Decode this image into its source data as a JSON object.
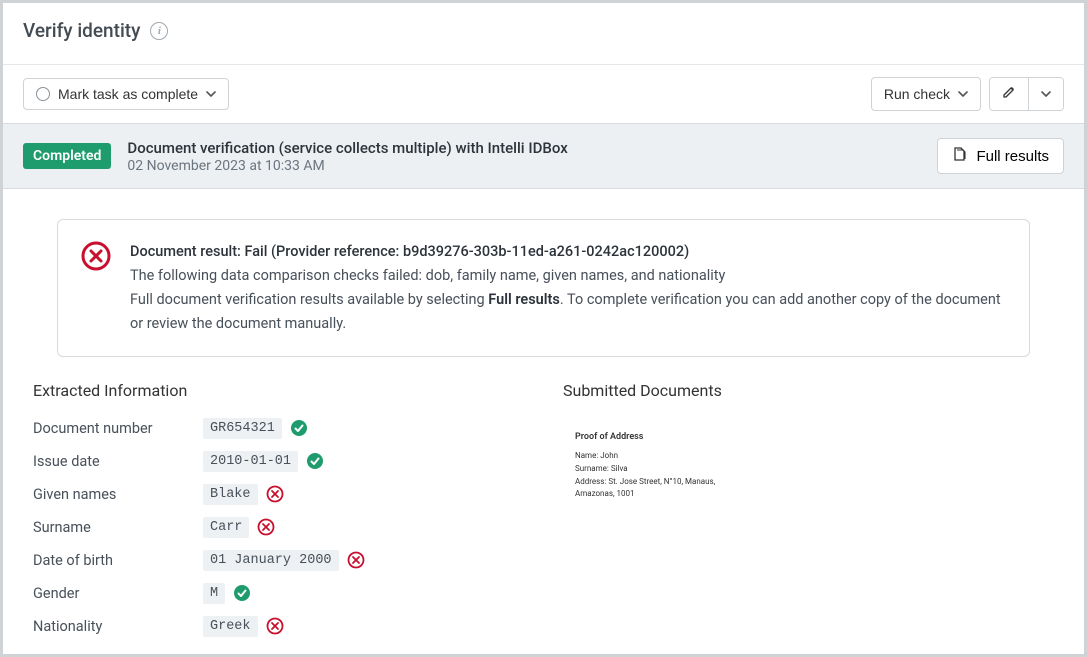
{
  "header": {
    "title": "Verify identity"
  },
  "toolbar": {
    "mark_complete": "Mark task as complete",
    "run_check": "Run check"
  },
  "status": {
    "badge": "Completed",
    "title": "Document verification (service collects multiple) with Intelli IDBox",
    "date": "02 November 2023 at 10:33 AM",
    "full_results": "Full results"
  },
  "alert": {
    "title": "Document result: Fail (Provider reference: b9d39276-303b-11ed-a261-0242ac120002)",
    "line1": "The following data comparison checks failed: dob, family name, given names, and nationality",
    "line2a": "Full document verification results available by selecting ",
    "line2b": "Full results",
    "line2c": ". To complete verification you can add another copy of the document or review the document manually."
  },
  "extracted": {
    "title": "Extracted Information",
    "rows": [
      {
        "label": "Document number",
        "value": "GR654321",
        "status": "pass"
      },
      {
        "label": "Issue date",
        "value": "2010-01-01",
        "status": "pass"
      },
      {
        "label": "Given names",
        "value": "Blake",
        "status": "fail"
      },
      {
        "label": "Surname",
        "value": "Carr",
        "status": "fail"
      },
      {
        "label": "Date of birth",
        "value": "01 January 2000",
        "status": "fail"
      },
      {
        "label": "Gender",
        "value": "M",
        "status": "pass"
      },
      {
        "label": "Nationality",
        "value": "Greek",
        "status": "fail"
      }
    ]
  },
  "submitted": {
    "title": "Submitted Documents",
    "doc": {
      "heading": "Proof of Address",
      "name_label": "Name:",
      "name": "John",
      "surname_label": "Surname:",
      "surname": "Silva",
      "address_label": "Address:",
      "address": "St. Jose Street, N°10, Manaus, Amazonas, 1001"
    }
  },
  "colors": {
    "pass": "#1f9c6d",
    "fail": "#c8102e"
  }
}
